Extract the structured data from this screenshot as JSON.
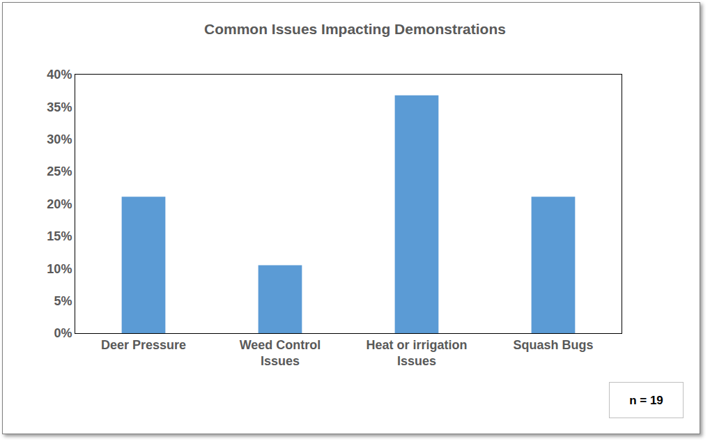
{
  "chart_data": {
    "type": "bar",
    "title": "Common Issues Impacting Demonstrations",
    "categories": [
      "Deer Pressure",
      "Weed Control Issues",
      "Heat or irrigation Issues",
      "Squash Bugs"
    ],
    "values": [
      21.1,
      10.5,
      36.8,
      21.1
    ],
    "color": "#5b9bd5",
    "ylim": [
      0,
      40
    ],
    "yticks": [
      {
        "value": 0,
        "label": "0%"
      },
      {
        "value": 5,
        "label": "5%"
      },
      {
        "value": 10,
        "label": "10%"
      },
      {
        "value": 15,
        "label": "15%"
      },
      {
        "value": 20,
        "label": "20%"
      },
      {
        "value": 25,
        "label": "25%"
      },
      {
        "value": 30,
        "label": "30%"
      },
      {
        "value": 35,
        "label": "35%"
      },
      {
        "value": 40,
        "label": "40%"
      }
    ],
    "grid": false,
    "annotations": [
      "n = 19"
    ]
  }
}
